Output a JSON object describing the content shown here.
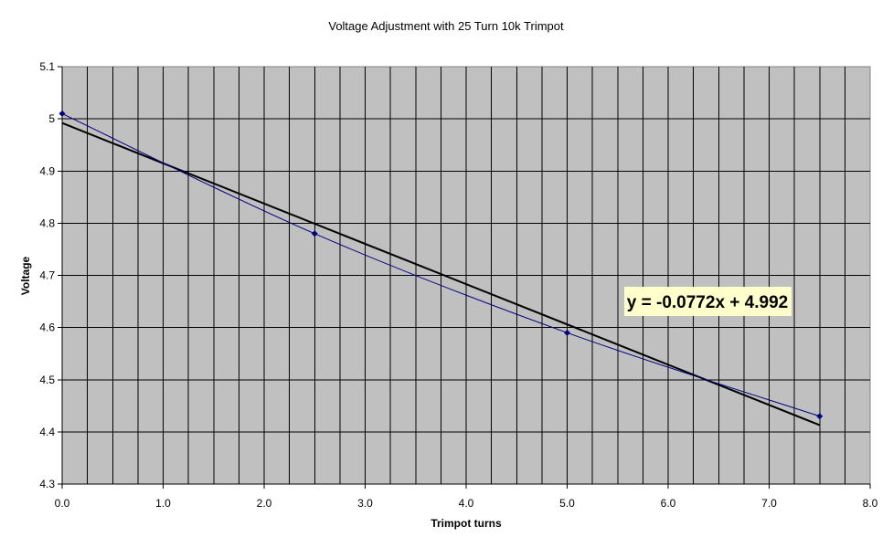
{
  "chart_data": {
    "type": "scatter",
    "title": "Voltage Adjustment with 25 Turn 10k Trimpot",
    "xlabel": "Trimpot turns",
    "ylabel": "Voltage",
    "xlim": [
      0.0,
      8.0
    ],
    "ylim": [
      4.3,
      5.1
    ],
    "x_ticks": [
      "0.0",
      "1.0",
      "2.0",
      "3.0",
      "4.0",
      "5.0",
      "6.0",
      "7.0",
      "8.0"
    ],
    "y_ticks": [
      "4.3",
      "4.4",
      "4.5",
      "4.6",
      "4.7",
      "4.8",
      "4.9",
      "5",
      "5.1"
    ],
    "x_minor_step": 0.25,
    "grid": true,
    "background_color": "#c0c0c0",
    "series": [
      {
        "color": "#000080",
        "marker": "diamond",
        "line": "smoothed",
        "points": [
          {
            "x": 0.0,
            "y": 5.01
          },
          {
            "x": 2.5,
            "y": 4.78
          },
          {
            "x": 5.0,
            "y": 4.59
          },
          {
            "x": 7.5,
            "y": 4.43
          }
        ]
      }
    ],
    "trendline": {
      "type": "linear",
      "slope": -0.0772,
      "intercept": 4.992,
      "x_range": [
        0.0,
        7.5
      ],
      "color": "#000000",
      "equation_label": "y = -0.0772x + 4.992",
      "label_background": "#ffffcc"
    }
  }
}
